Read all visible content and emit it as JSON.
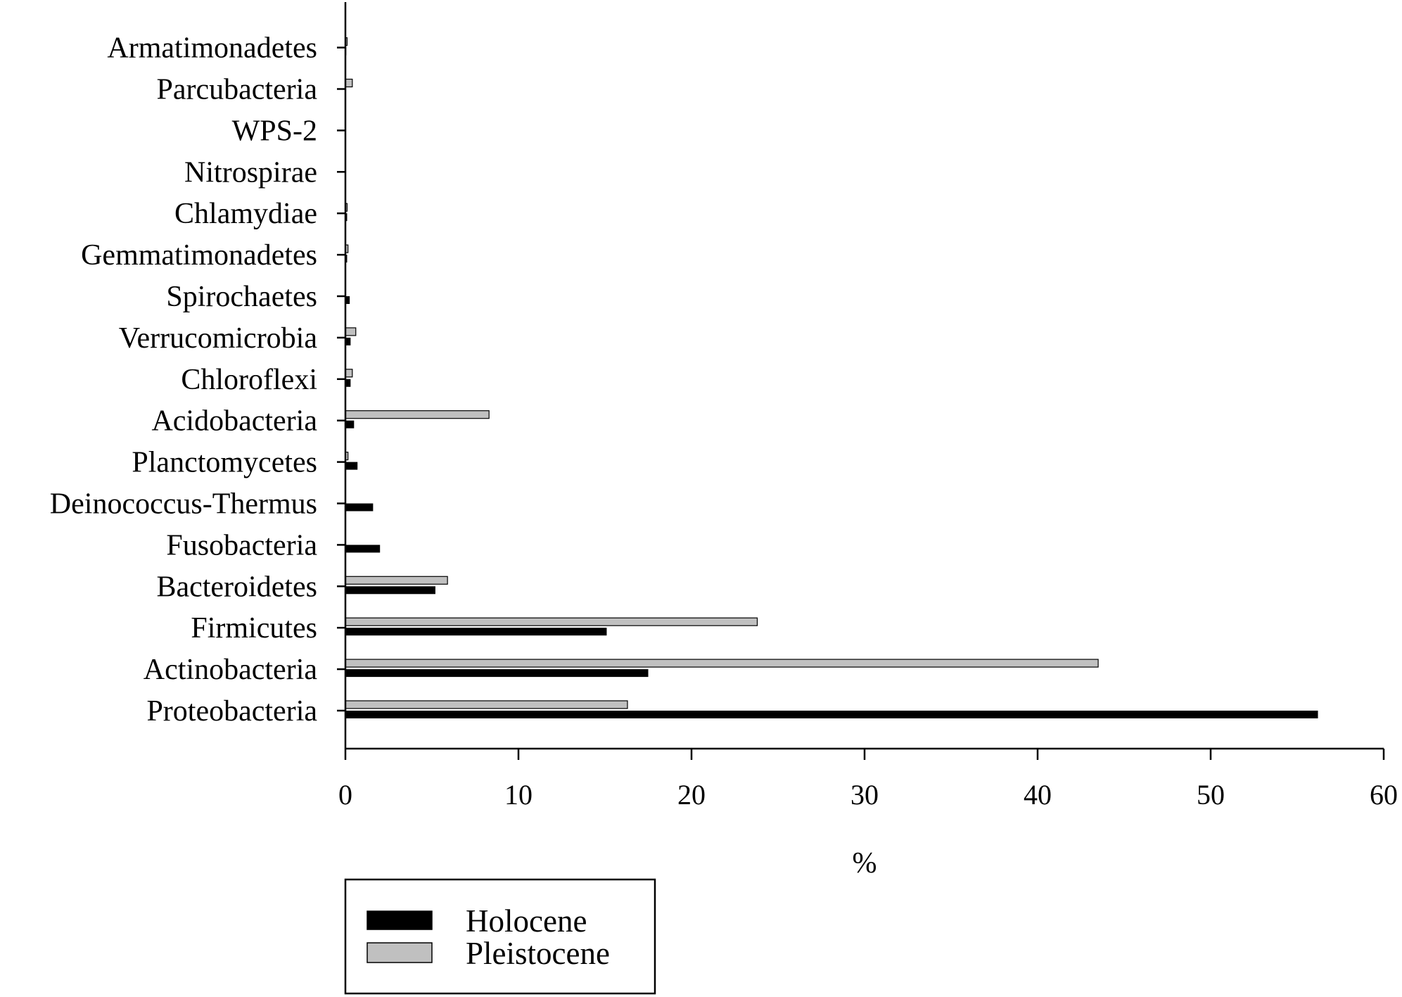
{
  "chart_data": {
    "type": "bar",
    "orientation": "horizontal",
    "categories": [
      "Proteobacteria",
      "Actinobacteria",
      "Firmicutes",
      "Bacteroidetes",
      "Fusobacteria",
      "Deinococcus-Thermus",
      "Planctomycetes",
      "Acidobacteria",
      "Chloroflexi",
      "Verrucomicrobia",
      "Spirochaetes",
      "Gemmatimonadetes",
      "Chlamydiae",
      "Nitrospirae",
      "WPS-2",
      "Parcubacteria",
      "Armatimonadetes"
    ],
    "series": [
      {
        "name": "Holocene",
        "color": "#000000",
        "values": [
          56.2,
          17.5,
          15.1,
          5.2,
          2.0,
          1.6,
          0.7,
          0.5,
          0.3,
          0.3,
          0.25,
          0.1,
          0.1,
          0.02,
          0.02,
          0.02,
          0.05
        ]
      },
      {
        "name": "Pleistocene",
        "color": "#c0c0c0",
        "values": [
          16.3,
          43.5,
          23.8,
          5.9,
          0.0,
          0.0,
          0.15,
          8.3,
          0.4,
          0.6,
          0.0,
          0.15,
          0.1,
          0.0,
          0.0,
          0.4,
          0.1
        ]
      }
    ],
    "xlabel": "%",
    "ylabel": "",
    "title": "",
    "xlim": [
      0,
      60
    ],
    "xticks": [
      0,
      10,
      20,
      30,
      40,
      50,
      60
    ],
    "grid": false,
    "legend": "bottom-left"
  }
}
